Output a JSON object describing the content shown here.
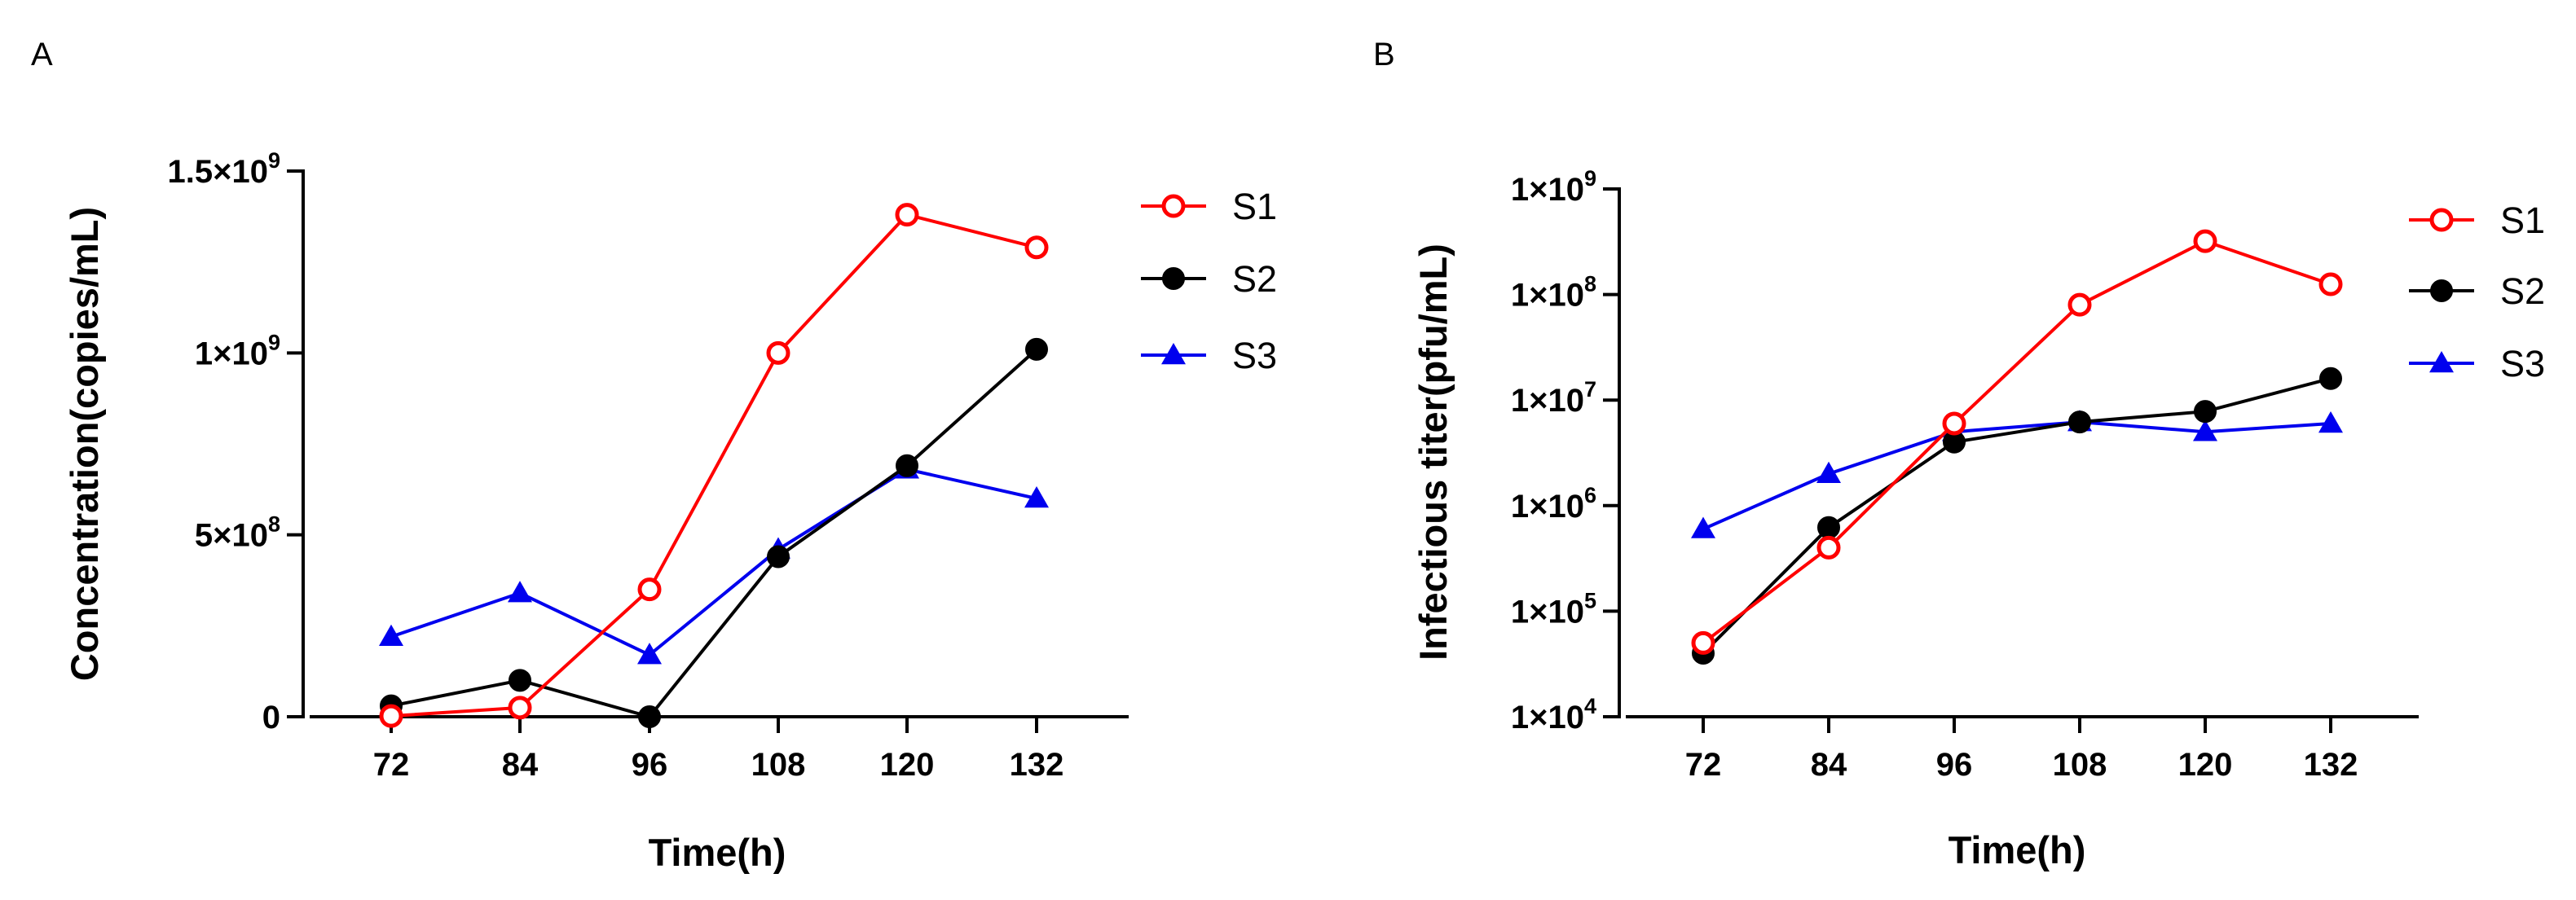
{
  "panels": [
    {
      "letter": "A"
    },
    {
      "letter": "B"
    }
  ],
  "colors": {
    "S1": "#ff0000",
    "S2": "#000000",
    "S3": "#0000ee"
  },
  "chart_data": [
    {
      "type": "line",
      "panel": "A",
      "xlabel": "Time(h)",
      "ylabel": "Concentration(copies/mL)",
      "x": [
        72,
        84,
        96,
        108,
        120,
        132
      ],
      "xticks": [
        "72",
        "84",
        "96",
        "108",
        "120",
        "132"
      ],
      "ylim": [
        0,
        1500000000
      ],
      "yscale": "linear",
      "yticks": [
        {
          "value": 0,
          "base": "0",
          "exp": ""
        },
        {
          "value": 500000000,
          "base": "5×10",
          "exp": "8"
        },
        {
          "value": 1000000000,
          "base": "1×10",
          "exp": "9"
        },
        {
          "value": 1500000000,
          "base": "1.5×10",
          "exp": "9"
        }
      ],
      "legend_position": "top-right",
      "grid": false,
      "series": [
        {
          "name": "S1",
          "marker": "open-circle",
          "values": [
            2000000,
            25000000,
            350000000,
            1000000000,
            1380000000,
            1290000000
          ]
        },
        {
          "name": "S2",
          "marker": "filled-circle",
          "values": [
            30000000,
            100000000,
            0,
            440000000,
            690000000,
            1010000000
          ]
        },
        {
          "name": "S3",
          "marker": "filled-triangle",
          "values": [
            220000000,
            340000000,
            170000000,
            460000000,
            680000000,
            600000000
          ]
        }
      ]
    },
    {
      "type": "line",
      "panel": "B",
      "xlabel": "Time(h)",
      "ylabel": "Infectious titer(pfu/mL)",
      "x": [
        72,
        84,
        96,
        108,
        120,
        132
      ],
      "xticks": [
        "72",
        "84",
        "96",
        "108",
        "120",
        "132"
      ],
      "ylim": [
        10000,
        1000000000
      ],
      "yscale": "log",
      "yticks": [
        {
          "value": 10000,
          "base": "1×10",
          "exp": "4"
        },
        {
          "value": 100000,
          "base": "1×10",
          "exp": "5"
        },
        {
          "value": 1000000,
          "base": "1×10",
          "exp": "6"
        },
        {
          "value": 10000000,
          "base": "1×10",
          "exp": "7"
        },
        {
          "value": 100000000,
          "base": "1×10",
          "exp": "8"
        },
        {
          "value": 1000000000,
          "base": "1×10",
          "exp": "9"
        }
      ],
      "legend_position": "top-right",
      "grid": false,
      "series": [
        {
          "name": "S1",
          "marker": "open-circle",
          "values": [
            50000,
            400000,
            6000000,
            80000000,
            320000000,
            125000000
          ]
        },
        {
          "name": "S2",
          "marker": "filled-circle",
          "values": [
            40000,
            620000,
            4000000,
            6200000,
            7800000,
            16000000
          ]
        },
        {
          "name": "S3",
          "marker": "filled-triangle",
          "values": [
            600000,
            2000000,
            5000000,
            6200000,
            5000000,
            6000000
          ]
        }
      ]
    }
  ]
}
